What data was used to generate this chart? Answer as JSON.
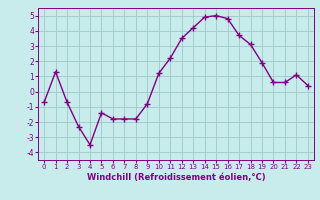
{
  "x": [
    0,
    1,
    2,
    3,
    4,
    5,
    6,
    7,
    8,
    9,
    10,
    11,
    12,
    13,
    14,
    15,
    16,
    17,
    18,
    19,
    20,
    21,
    22,
    23
  ],
  "y": [
    -0.7,
    1.3,
    -0.7,
    -2.3,
    -3.5,
    -1.4,
    -1.8,
    -1.8,
    -1.8,
    -0.8,
    1.2,
    2.2,
    3.5,
    4.2,
    4.9,
    5.0,
    4.8,
    3.7,
    3.1,
    1.9,
    0.6,
    0.6,
    1.1,
    0.4
  ],
  "line_color": "#800080",
  "marker": "+",
  "marker_size": 4,
  "bg_color": "#c8ecec",
  "grid_color": "#a0c8c8",
  "xlabel": "Windchill (Refroidissement éolien,°C)",
  "xlabel_color": "#800080",
  "tick_color": "#800080",
  "ylim": [
    -4.5,
    5.5
  ],
  "yticks": [
    -4,
    -3,
    -2,
    -1,
    0,
    1,
    2,
    3,
    4,
    5
  ],
  "xlim": [
    -0.5,
    23.5
  ],
  "xticks": [
    0,
    1,
    2,
    3,
    4,
    5,
    6,
    7,
    8,
    9,
    10,
    11,
    12,
    13,
    14,
    15,
    16,
    17,
    18,
    19,
    20,
    21,
    22,
    23
  ]
}
